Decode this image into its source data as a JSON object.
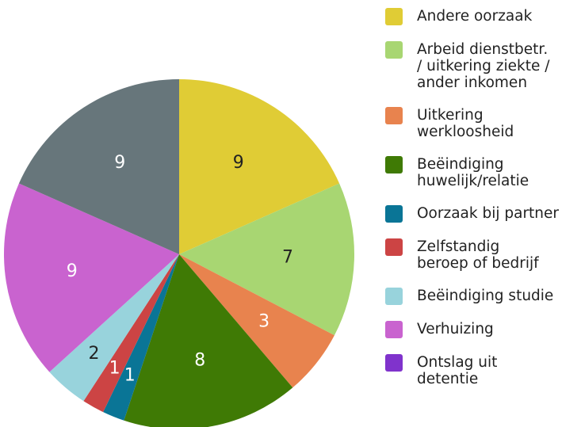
{
  "chart_data": {
    "type": "pie",
    "categories": [
      "Andere oorzaak",
      "Arbeid dienstbetr.\n/ uitkering ziekte /\nander inkomen",
      "Uitkering\nwerkloosheid",
      "Beëindiging\nhuwelijk/relatie",
      "Oorzaak bij partner",
      "Zelfstandig\nberoep of bedrijf",
      "Beëindiging studie",
      "Verhuizing",
      "Ontslag uit\ndetentie",
      null
    ],
    "values": [
      9,
      7,
      3,
      8,
      1,
      1,
      2,
      9,
      0,
      9
    ],
    "colors": [
      "#e0cc35",
      "#a8d672",
      "#e8834e",
      "#3f7a05",
      "#0a7596",
      "#cc4444",
      "#98d3dc",
      "#c963cf",
      "#8033cc",
      "#67767b"
    ],
    "label_colors": [
      "#222",
      "#222",
      "#fff",
      "#fff",
      "#fff",
      "#fff",
      "#222",
      "#fff",
      "#fff",
      "#fff"
    ],
    "legend": "right"
  }
}
